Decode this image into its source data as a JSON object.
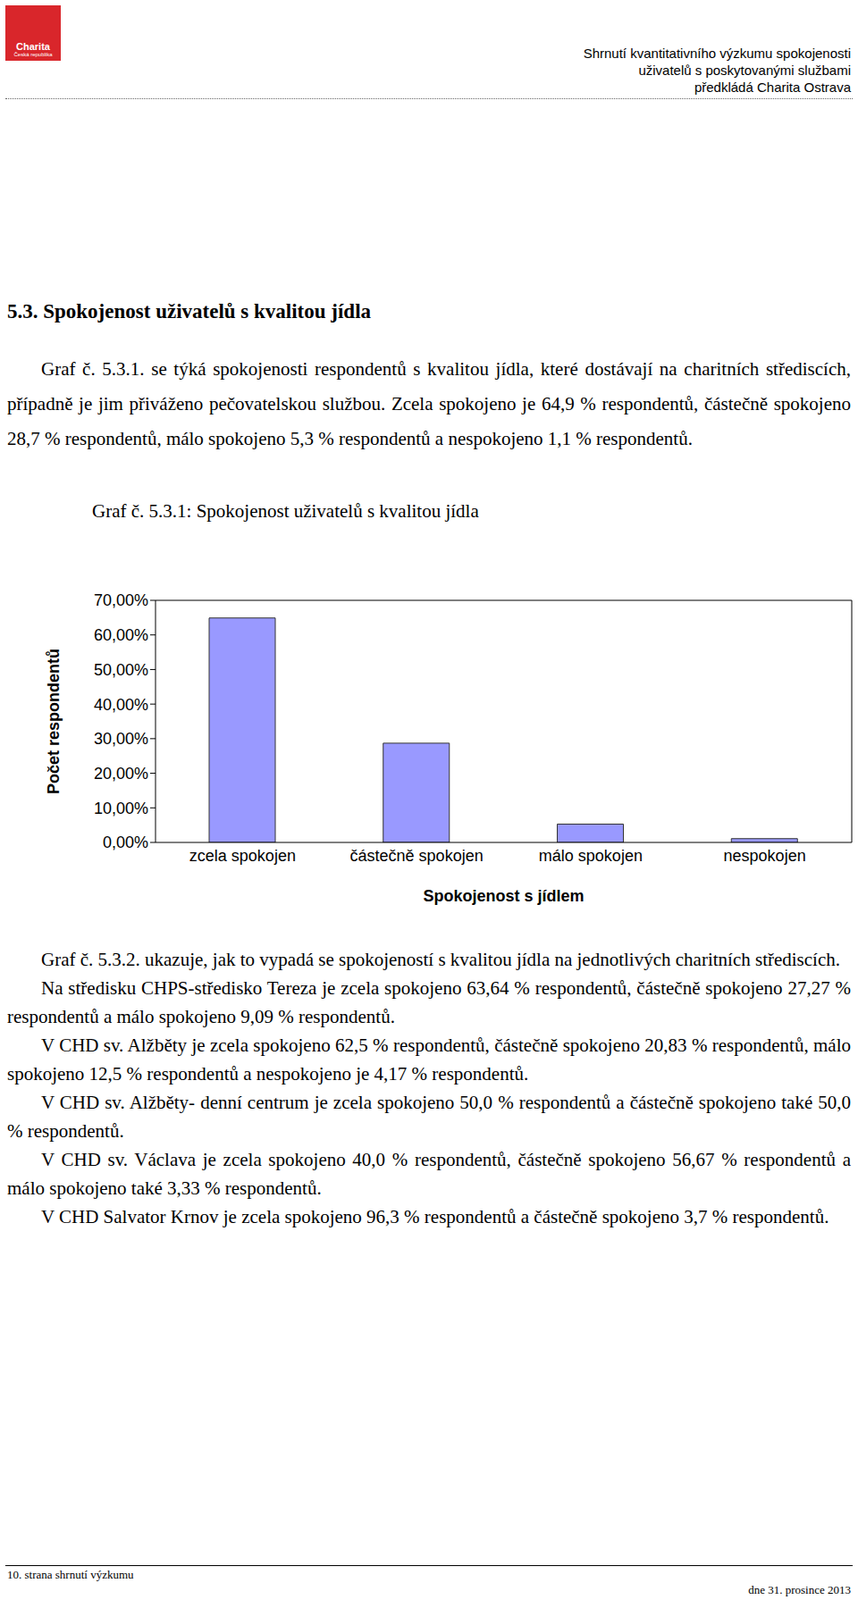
{
  "header": {
    "logo": [
      "Charita",
      "Česká republika"
    ],
    "lines": [
      "Shrnutí kvantitativního výzkumu spokojenosti",
      "uživatelů s poskytovanými službami",
      "předkládá Charita Ostrava"
    ]
  },
  "section_title": "5.3. Spokojenost uživatelů s kvalitou jídla",
  "intro": "Graf č. 5.3.1. se týká spokojenosti respondentů s kvalitou jídla, které dostávají na charitních střediscích, případně je jim přiváženo pečovatelskou službou. Zcela spokojeno je 64,9 % respondentů, částečně spokojeno 28,7 % respondentů, málo spokojeno 5,3 % respondentů a nespokojeno 1,1 % respondentů.",
  "chart_data": {
    "type": "bar",
    "title": "Graf č. 5.3.1: Spokojenost uživatelů s kvalitou jídla",
    "x_label": "Spokojenost s jídlem",
    "y_label": "Počet respondentů",
    "categories": [
      "zcela spokojen",
      "částečně spokojen",
      "málo spokojen",
      "nespokojen"
    ],
    "values": [
      64.9,
      28.7,
      5.3,
      1.1
    ],
    "color": "#9999ff",
    "ylim": [
      0,
      70
    ],
    "yticks": [
      {
        "value": 0,
        "label": "0,00%"
      },
      {
        "value": 10,
        "label": "10,00%"
      },
      {
        "value": 20,
        "label": "20,00%"
      },
      {
        "value": 30,
        "label": "30,00%"
      },
      {
        "value": 40,
        "label": "40,00%"
      },
      {
        "value": 50,
        "label": "50,00%"
      },
      {
        "value": 60,
        "label": "60,00%"
      },
      {
        "value": 70,
        "label": "70,00%"
      }
    ],
    "grid": false
  },
  "paragraphs": [
    "Graf č. 5.3.2. ukazuje, jak to vypadá se spokojeností s kvalitou jídla na jednotlivých charitních střediscích.",
    "Na středisku CHPS-středisko Tereza je zcela spokojeno 63,64 % respondentů, částečně spokojeno 27,27 % respondentů a málo spokojeno 9,09 % respondentů.",
    "V CHD sv. Alžběty je zcela spokojeno 62,5 % respondentů, částečně spokojeno 20,83 % respondentů, málo spokojeno 12,5 % respondentů a nespokojeno je 4,17 % respondentů.",
    "V CHD sv. Alžběty- denní centrum je zcela spokojeno 50,0 % respondentů a částečně spokojeno také 50,0 % respondentů.",
    "V CHD sv. Václava je zcela spokojeno 40,0 % respondentů, částečně spokojeno 56,67 % respondentů a málo spokojeno také 3,33 % respondentů.",
    "V CHD Salvator Krnov je zcela spokojeno 96,3 % respondentů a částečně spokojeno 3,7 % respondentů."
  ],
  "footer": {
    "left": "10. strana shrnutí výzkumu",
    "right": "dne 31. prosince 2013"
  }
}
